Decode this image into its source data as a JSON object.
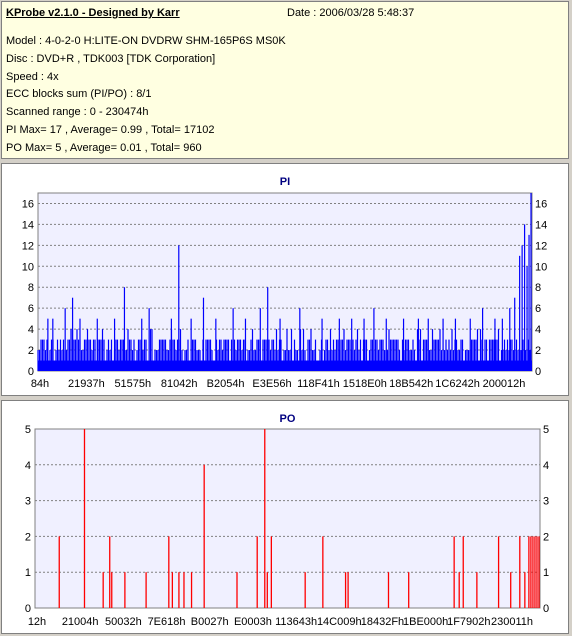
{
  "info": {
    "title": "KProbe v2.1.0 - Designed by Karr",
    "date": "Date : 2006/03/28 5:48:37",
    "lines": [
      "Model : 4-0-2-0 H:LITE-ON DVDRW SHM-165P6S MS0K",
      "Disc : DVD+R , TDK003 [TDK Corporation]",
      "Speed : 4x",
      "ECC blocks sum (PI/PO) : 8/1",
      "Scanned range : 0 - 230474h",
      "PI Max= 17 , Average= 0.99 , Total= 17102",
      "PO Max= 5 , Average= 0.01 , Total= 960"
    ]
  },
  "chart_data": [
    {
      "type": "bar",
      "title": "PI",
      "color": "#0000ff",
      "ylim": [
        0,
        17
      ],
      "yticks": [
        0,
        2,
        4,
        6,
        8,
        10,
        12,
        14,
        16
      ],
      "xlabels": [
        "84h",
        "21937h",
        "51575h",
        "81042h",
        "B2054h",
        "E3E56h",
        "118F41h",
        "1518E0h",
        "18B542h",
        "1C6242h",
        "200012h"
      ],
      "grid": true,
      "spikes": [
        {
          "pos": 0.02,
          "value": 5
        },
        {
          "pos": 0.03,
          "value": 5
        },
        {
          "pos": 0.055,
          "value": 6
        },
        {
          "pos": 0.07,
          "value": 7
        },
        {
          "pos": 0.085,
          "value": 5
        },
        {
          "pos": 0.12,
          "value": 5
        },
        {
          "pos": 0.155,
          "value": 5
        },
        {
          "pos": 0.175,
          "value": 8
        },
        {
          "pos": 0.21,
          "value": 5
        },
        {
          "pos": 0.225,
          "value": 6
        },
        {
          "pos": 0.27,
          "value": 5
        },
        {
          "pos": 0.285,
          "value": 12
        },
        {
          "pos": 0.31,
          "value": 5
        },
        {
          "pos": 0.335,
          "value": 7
        },
        {
          "pos": 0.36,
          "value": 5
        },
        {
          "pos": 0.395,
          "value": 6
        },
        {
          "pos": 0.42,
          "value": 5
        },
        {
          "pos": 0.45,
          "value": 6
        },
        {
          "pos": 0.465,
          "value": 8
        },
        {
          "pos": 0.49,
          "value": 5
        },
        {
          "pos": 0.53,
          "value": 6
        },
        {
          "pos": 0.575,
          "value": 5
        },
        {
          "pos": 0.61,
          "value": 5
        },
        {
          "pos": 0.635,
          "value": 5
        },
        {
          "pos": 0.66,
          "value": 5
        },
        {
          "pos": 0.68,
          "value": 6
        },
        {
          "pos": 0.705,
          "value": 5
        },
        {
          "pos": 0.74,
          "value": 5
        },
        {
          "pos": 0.77,
          "value": 5
        },
        {
          "pos": 0.79,
          "value": 5
        },
        {
          "pos": 0.82,
          "value": 5
        },
        {
          "pos": 0.845,
          "value": 5
        },
        {
          "pos": 0.875,
          "value": 5
        },
        {
          "pos": 0.9,
          "value": 6
        },
        {
          "pos": 0.925,
          "value": 5
        },
        {
          "pos": 0.94,
          "value": 5
        },
        {
          "pos": 0.955,
          "value": 6
        },
        {
          "pos": 0.965,
          "value": 7
        },
        {
          "pos": 0.975,
          "value": 11
        },
        {
          "pos": 0.98,
          "value": 12
        },
        {
          "pos": 0.985,
          "value": 14
        },
        {
          "pos": 0.99,
          "value": 10
        },
        {
          "pos": 0.994,
          "value": 13
        },
        {
          "pos": 0.998,
          "value": 17
        }
      ]
    },
    {
      "type": "bar",
      "title": "PO",
      "color": "#ff0000",
      "ylim": [
        0,
        5
      ],
      "yticks": [
        0,
        1,
        2,
        3,
        4,
        5
      ],
      "xlabels": [
        "12h",
        "21004h",
        "50032h",
        "7E618h",
        "B0027h",
        "E0003h",
        "113643h",
        "14C009h",
        "18432Fh",
        "1BE000h",
        "1F7902h",
        "230011h"
      ],
      "grid": true,
      "bars": [
        {
          "pos": 0.048,
          "value": 2
        },
        {
          "pos": 0.098,
          "value": 5
        },
        {
          "pos": 0.135,
          "value": 1
        },
        {
          "pos": 0.148,
          "value": 2
        },
        {
          "pos": 0.152,
          "value": 1
        },
        {
          "pos": 0.178,
          "value": 1
        },
        {
          "pos": 0.22,
          "value": 1
        },
        {
          "pos": 0.265,
          "value": 2
        },
        {
          "pos": 0.272,
          "value": 1
        },
        {
          "pos": 0.285,
          "value": 1
        },
        {
          "pos": 0.295,
          "value": 1
        },
        {
          "pos": 0.31,
          "value": 1
        },
        {
          "pos": 0.335,
          "value": 4
        },
        {
          "pos": 0.4,
          "value": 1
        },
        {
          "pos": 0.44,
          "value": 2
        },
        {
          "pos": 0.455,
          "value": 5
        },
        {
          "pos": 0.46,
          "value": 1
        },
        {
          "pos": 0.468,
          "value": 2
        },
        {
          "pos": 0.535,
          "value": 1
        },
        {
          "pos": 0.57,
          "value": 2
        },
        {
          "pos": 0.615,
          "value": 1
        },
        {
          "pos": 0.62,
          "value": 1
        },
        {
          "pos": 0.7,
          "value": 1
        },
        {
          "pos": 0.74,
          "value": 1
        },
        {
          "pos": 0.83,
          "value": 2
        },
        {
          "pos": 0.84,
          "value": 1
        },
        {
          "pos": 0.848,
          "value": 2
        },
        {
          "pos": 0.875,
          "value": 1
        },
        {
          "pos": 0.918,
          "value": 2
        },
        {
          "pos": 0.942,
          "value": 1
        },
        {
          "pos": 0.96,
          "value": 2
        },
        {
          "pos": 0.97,
          "value": 1
        },
        {
          "pos": 0.978,
          "value": 2
        },
        {
          "pos": 0.982,
          "value": 2
        },
        {
          "pos": 0.986,
          "value": 2
        },
        {
          "pos": 0.99,
          "value": 2
        },
        {
          "pos": 0.994,
          "value": 2
        },
        {
          "pos": 0.998,
          "value": 2
        }
      ]
    }
  ]
}
